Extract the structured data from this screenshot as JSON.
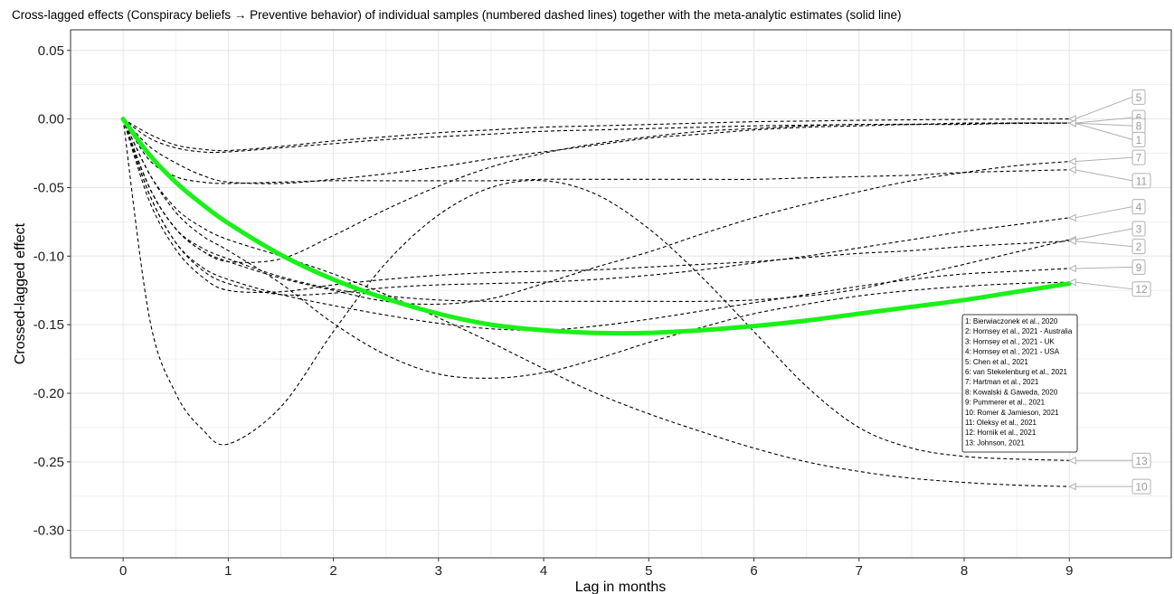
{
  "chart_data": {
    "type": "line",
    "title": "Cross-lagged effects (Conspiracy beliefs → Preventive behavior) of individual samples (numbered dashed lines) together with the meta-analytic estimates (solid line)",
    "xlabel": "Lag in months",
    "ylabel": "Crossed-lagged effect",
    "xlim": [
      -0.5,
      9.97
    ],
    "ylim": [
      -0.32,
      0.065
    ],
    "x_ticks": [
      0,
      1,
      2,
      3,
      4,
      5,
      6,
      7,
      8,
      9
    ],
    "y_ticks": [
      0.05,
      0.0,
      -0.05,
      -0.1,
      -0.15,
      -0.2,
      -0.25,
      -0.3
    ],
    "y_tick_labels": [
      "0.05",
      "0.00",
      "-0.05",
      "-0.10",
      "-0.15",
      "-0.20",
      "-0.25",
      "-0.30"
    ],
    "grid": true,
    "meta_color": "#19f119",
    "x": [
      0,
      0.25,
      0.5,
      0.75,
      1,
      1.5,
      2,
      2.5,
      3,
      3.5,
      4,
      4.5,
      5,
      5.5,
      6,
      6.5,
      7,
      7.5,
      8,
      8.5,
      9
    ],
    "meta_series": {
      "values": [
        0,
        -0.026,
        -0.046,
        -0.062,
        -0.076,
        -0.099,
        -0.117,
        -0.131,
        -0.142,
        -0.15,
        -0.154,
        -0.156,
        -0.156,
        -0.154,
        -0.151,
        -0.147,
        -0.142,
        -0.137,
        -0.132,
        -0.126,
        -0.12
      ]
    },
    "series": [
      {
        "label": "1",
        "values": [
          0,
          -0.014,
          -0.021,
          -0.024,
          -0.024,
          -0.021,
          -0.018,
          -0.015,
          -0.013,
          -0.011,
          -0.009,
          -0.008,
          -0.007,
          -0.006,
          -0.005,
          -0.0045,
          -0.004,
          -0.0038,
          -0.0035,
          -0.0033,
          -0.003
        ]
      },
      {
        "label": "2",
        "values": [
          0,
          -0.06,
          -0.095,
          -0.115,
          -0.125,
          -0.126,
          -0.121,
          -0.117,
          -0.114,
          -0.112,
          -0.111,
          -0.11,
          -0.108,
          -0.106,
          -0.104,
          -0.101,
          -0.098,
          -0.096,
          -0.093,
          -0.091,
          -0.089
        ]
      },
      {
        "label": "3",
        "values": [
          0,
          -0.05,
          -0.08,
          -0.094,
          -0.102,
          -0.115,
          -0.124,
          -0.129,
          -0.132,
          -0.133,
          -0.133,
          -0.133,
          -0.133,
          -0.133,
          -0.132,
          -0.129,
          -0.124,
          -0.115,
          -0.106,
          -0.097,
          -0.088
        ]
      },
      {
        "label": "4",
        "values": [
          0,
          -0.055,
          -0.09,
          -0.11,
          -0.12,
          -0.128,
          -0.127,
          -0.123,
          -0.121,
          -0.12,
          -0.119,
          -0.117,
          -0.114,
          -0.11,
          -0.105,
          -0.1,
          -0.094,
          -0.088,
          -0.082,
          -0.077,
          -0.072
        ]
      },
      {
        "label": "5",
        "values": [
          0,
          -0.011,
          -0.019,
          -0.022,
          -0.023,
          -0.02,
          -0.016,
          -0.013,
          -0.01,
          -0.008,
          -0.006,
          -0.005,
          -0.004,
          -0.003,
          -0.002,
          -0.0015,
          -0.001,
          -0.0006,
          -0.0003,
          -0.0001,
          0
        ]
      },
      {
        "label": "6",
        "values": [
          0,
          -0.05,
          -0.08,
          -0.096,
          -0.104,
          -0.102,
          -0.085,
          -0.066,
          -0.049,
          -0.035,
          -0.025,
          -0.018,
          -0.013,
          -0.009,
          -0.007,
          -0.005,
          -0.004,
          -0.004,
          -0.003,
          -0.003,
          -0.003
        ]
      },
      {
        "label": "7",
        "values": [
          0,
          -0.05,
          -0.08,
          -0.096,
          -0.104,
          -0.116,
          -0.125,
          -0.133,
          -0.135,
          -0.131,
          -0.12,
          -0.108,
          -0.097,
          -0.084,
          -0.072,
          -0.062,
          -0.053,
          -0.045,
          -0.039,
          -0.034,
          -0.031
        ]
      },
      {
        "label": "8",
        "values": [
          0,
          -0.02,
          -0.032,
          -0.041,
          -0.046,
          -0.047,
          -0.044,
          -0.04,
          -0.035,
          -0.029,
          -0.024,
          -0.019,
          -0.014,
          -0.011,
          -0.008,
          -0.006,
          -0.005,
          -0.004,
          -0.004,
          -0.003,
          -0.003
        ]
      },
      {
        "label": "9",
        "values": [
          0,
          -0.055,
          -0.09,
          -0.108,
          -0.117,
          -0.128,
          -0.136,
          -0.143,
          -0.149,
          -0.153,
          -0.154,
          -0.151,
          -0.146,
          -0.14,
          -0.134,
          -0.128,
          -0.122,
          -0.117,
          -0.113,
          -0.111,
          -0.109
        ]
      },
      {
        "label": "10",
        "values": [
          0,
          -0.04,
          -0.065,
          -0.079,
          -0.088,
          -0.1,
          -0.113,
          -0.128,
          -0.145,
          -0.163,
          -0.182,
          -0.2,
          -0.215,
          -0.228,
          -0.24,
          -0.25,
          -0.257,
          -0.262,
          -0.265,
          -0.267,
          -0.268
        ]
      },
      {
        "label": "11",
        "values": [
          0,
          -0.03,
          -0.042,
          -0.046,
          -0.047,
          -0.046,
          -0.045,
          -0.045,
          -0.045,
          -0.045,
          -0.044,
          -0.044,
          -0.044,
          -0.044,
          -0.044,
          -0.043,
          -0.042,
          -0.041,
          -0.039,
          -0.038,
          -0.037
        ]
      },
      {
        "label": "12",
        "values": [
          0,
          -0.04,
          -0.068,
          -0.085,
          -0.096,
          -0.12,
          -0.149,
          -0.172,
          -0.186,
          -0.189,
          -0.185,
          -0.175,
          -0.163,
          -0.152,
          -0.142,
          -0.135,
          -0.129,
          -0.125,
          -0.122,
          -0.12,
          -0.119
        ]
      },
      {
        "label": "13",
        "values": [
          0,
          -0.145,
          -0.2,
          -0.226,
          -0.237,
          -0.21,
          -0.155,
          -0.105,
          -0.07,
          -0.05,
          -0.045,
          -0.055,
          -0.08,
          -0.115,
          -0.155,
          -0.195,
          -0.225,
          -0.24,
          -0.246,
          -0.248,
          -0.249
        ]
      }
    ],
    "end_labels": [
      {
        "label": "5",
        "y": 0.016
      },
      {
        "label": "6",
        "y": 0.001
      },
      {
        "label": "8",
        "y": -0.005
      },
      {
        "label": "1",
        "y": -0.015
      },
      {
        "label": "7",
        "y": -0.028
      },
      {
        "label": "11",
        "y": -0.045
      },
      {
        "label": "4",
        "y": -0.064
      },
      {
        "label": "3",
        "y": -0.08
      },
      {
        "label": "2",
        "y": -0.093
      },
      {
        "label": "9",
        "y": -0.108
      },
      {
        "label": "12",
        "y": -0.124
      },
      {
        "label": "13",
        "y": -0.249
      },
      {
        "label": "10",
        "y": -0.268
      }
    ],
    "legend": {
      "placement": "right",
      "entries": [
        "1: Bierwiaczonek et al., 2020",
        "2: Hornsey et al., 2021 - Australia",
        "3: Hornsey et al., 2021 - UK",
        "4: Hornsey et al., 2021 - USA",
        "5: Chen et al., 2021",
        "6: van Stekelenburg et al., 2021",
        "7: Hartman et al., 2021",
        "8: Kowalski & Gaweda, 2020",
        "9: Pummerer et al., 2021",
        "10: Romer & Jamieson, 2021",
        "11: Oleksy et al., 2021",
        "12: Hornik et al., 2021",
        "13: Johnson, 2021"
      ]
    }
  }
}
